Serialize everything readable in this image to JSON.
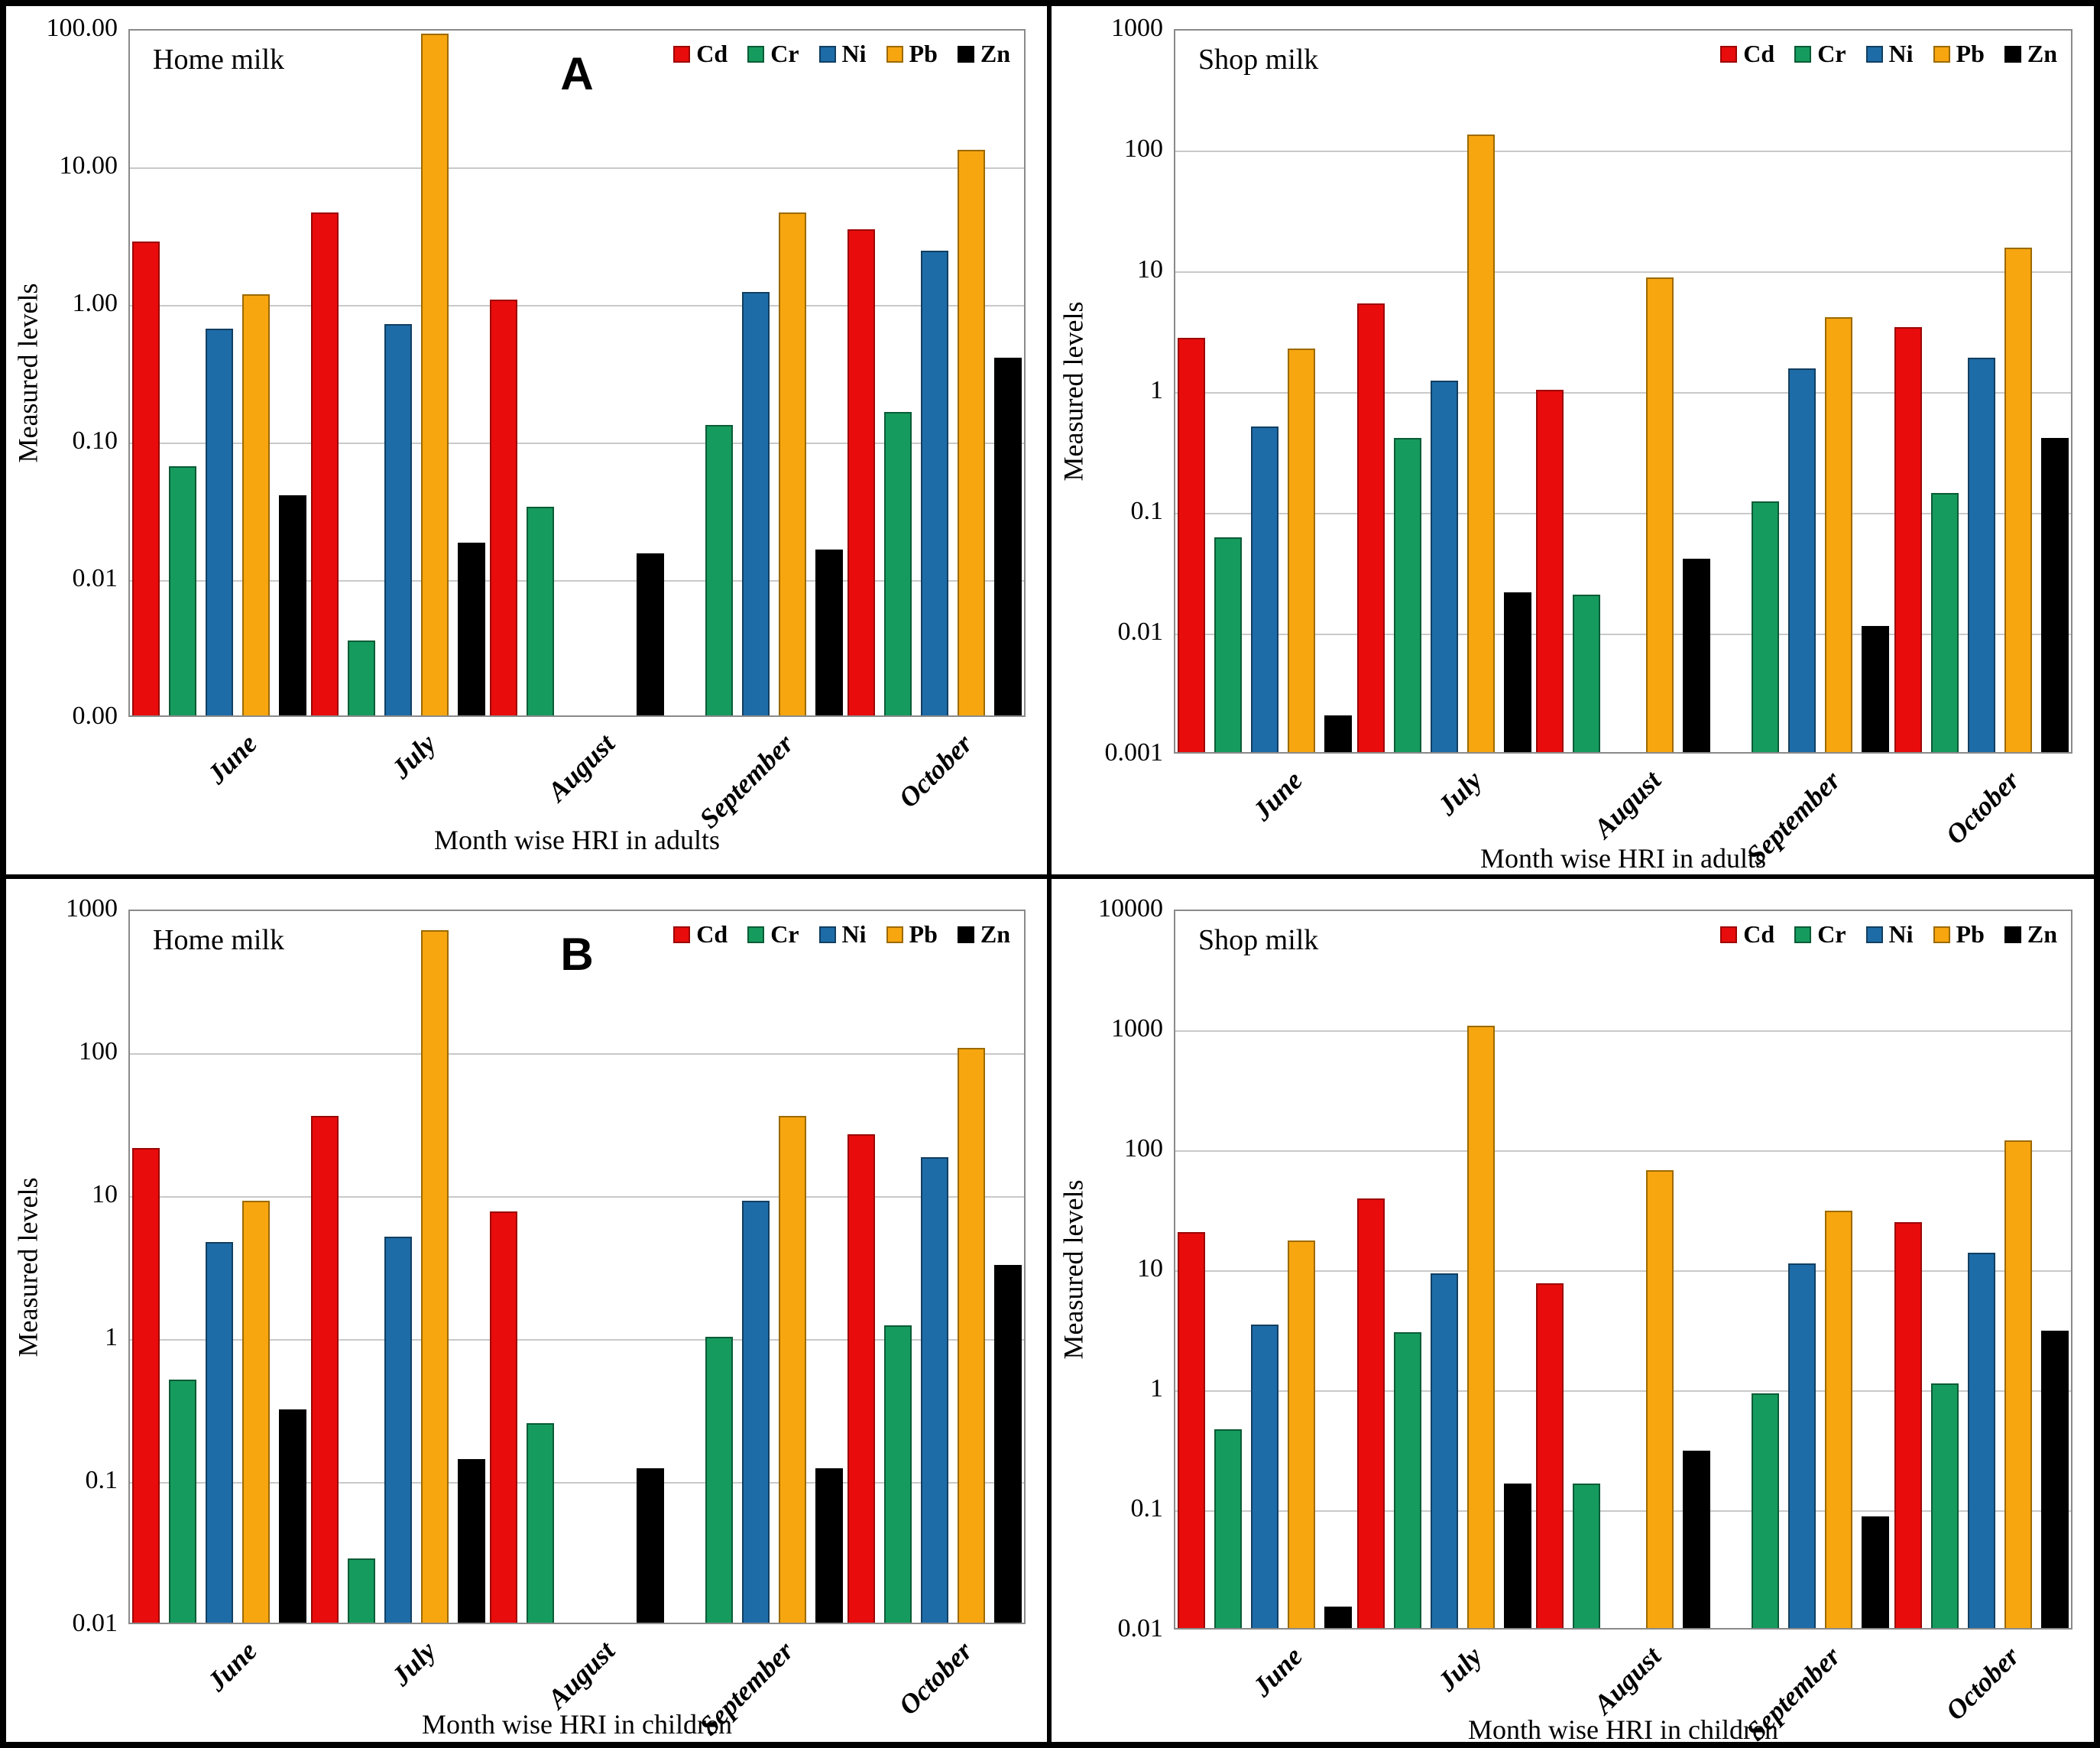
{
  "legend": {
    "items": [
      {
        "label": "Cd",
        "color": "#e90c0c",
        "border": "#9c0606"
      },
      {
        "label": "Cr",
        "color": "#169b5e",
        "border": "#0a5c36"
      },
      {
        "label": "Ni",
        "color": "#1d6ca8",
        "border": "#123f61"
      },
      {
        "label": "Pb",
        "color": "#f7a60f",
        "border": "#9c6a00"
      },
      {
        "label": "Zn",
        "color": "#000000",
        "border": "#000000"
      }
    ]
  },
  "chart_data": [
    {
      "id": "home-milk-adults",
      "type": "bar",
      "title": "Home milk",
      "panel_label": "A",
      "ylabel": "Measured levels",
      "xlabel": "Month wise HRI in adults",
      "y_scale": "log",
      "ymin": 0.001,
      "ymax": 100,
      "y_tick_labels": [
        "100.00",
        "10.00",
        "1.00",
        "0.10",
        "0.01",
        "0.00"
      ],
      "grid": true,
      "legend_position": "top-right",
      "categories": [
        "June",
        "July",
        "August",
        "September",
        "October"
      ],
      "series": [
        {
          "name": "Cd",
          "values": [
            2.8,
            4.5,
            1.05,
            null,
            3.4
          ]
        },
        {
          "name": "Cr",
          "values": [
            0.065,
            0.0035,
            0.033,
            0.13,
            0.16
          ]
        },
        {
          "name": "Ni",
          "values": [
            0.65,
            0.7,
            null,
            1.2,
            2.4
          ]
        },
        {
          "name": "Pb",
          "values": [
            1.15,
            90,
            null,
            4.5,
            13
          ]
        },
        {
          "name": "Zn",
          "values": [
            0.04,
            0.018,
            0.015,
            0.016,
            0.4
          ]
        }
      ]
    },
    {
      "id": "shop-milk-adults",
      "type": "bar",
      "title": "Shop milk",
      "panel_label": "",
      "ylabel": "Measured levels",
      "xlabel": "Month wise HRI in adults",
      "y_scale": "log",
      "ymin": 0.001,
      "ymax": 1000,
      "y_tick_labels": [
        "1000",
        "100",
        "10",
        "1",
        "0.1",
        "0.01",
        "0.001"
      ],
      "grid": true,
      "legend_position": "top-right",
      "categories": [
        "June",
        "July",
        "August",
        "September",
        "October"
      ],
      "series": [
        {
          "name": "Cd",
          "values": [
            2.7,
            5.2,
            1.0,
            null,
            3.3
          ]
        },
        {
          "name": "Cr",
          "values": [
            0.06,
            0.4,
            0.02,
            0.12,
            0.14
          ]
        },
        {
          "name": "Ni",
          "values": [
            0.5,
            1.2,
            null,
            1.5,
            1.85
          ]
        },
        {
          "name": "Pb",
          "values": [
            2.2,
            130,
            8.5,
            4.0,
            15
          ]
        },
        {
          "name": "Zn",
          "values": [
            0.002,
            0.021,
            0.04,
            0.011,
            0.4
          ]
        }
      ]
    },
    {
      "id": "home-milk-children",
      "type": "bar",
      "title": "Home milk",
      "panel_label": "B",
      "ylabel": "Measured levels",
      "xlabel": "Month wise HRI in children",
      "y_scale": "log",
      "ymin": 0.01,
      "ymax": 1000,
      "y_tick_labels": [
        "1000",
        "100",
        "10",
        "1",
        "0.1",
        "0.01"
      ],
      "grid": true,
      "legend_position": "top-right",
      "categories": [
        "June",
        "July",
        "August",
        "September",
        "October"
      ],
      "series": [
        {
          "name": "Cd",
          "values": [
            21,
            35,
            7.5,
            null,
            26
          ]
        },
        {
          "name": "Cr",
          "values": [
            0.5,
            0.028,
            0.25,
            1.0,
            1.2
          ]
        },
        {
          "name": "Ni",
          "values": [
            4.6,
            5.0,
            null,
            9,
            18
          ]
        },
        {
          "name": "Pb",
          "values": [
            9,
            700,
            null,
            35,
            105
          ]
        },
        {
          "name": "Zn",
          "values": [
            0.31,
            0.14,
            0.12,
            0.12,
            3.2
          ]
        }
      ]
    },
    {
      "id": "shop-milk-children",
      "type": "bar",
      "title": "Shop milk",
      "panel_label": "",
      "ylabel": "Measured levels",
      "xlabel": "Month wise HRI in children",
      "y_scale": "log",
      "ymin": 0.01,
      "ymax": 10000,
      "y_tick_labels": [
        "10000",
        "1000",
        "100",
        "10",
        "1",
        "0.1",
        "0.01"
      ],
      "grid": true,
      "legend_position": "top-right",
      "categories": [
        "June",
        "July",
        "August",
        "September",
        "October"
      ],
      "series": [
        {
          "name": "Cd",
          "values": [
            20,
            38,
            7.5,
            null,
            24
          ]
        },
        {
          "name": "Cr",
          "values": [
            0.45,
            2.9,
            0.16,
            0.9,
            1.1
          ]
        },
        {
          "name": "Ni",
          "values": [
            3.4,
            9,
            null,
            11,
            13.5
          ]
        },
        {
          "name": "Pb",
          "values": [
            17,
            1050,
            65,
            30,
            115
          ]
        },
        {
          "name": "Zn",
          "values": [
            0.015,
            0.16,
            0.3,
            0.085,
            3.0
          ]
        }
      ]
    }
  ]
}
